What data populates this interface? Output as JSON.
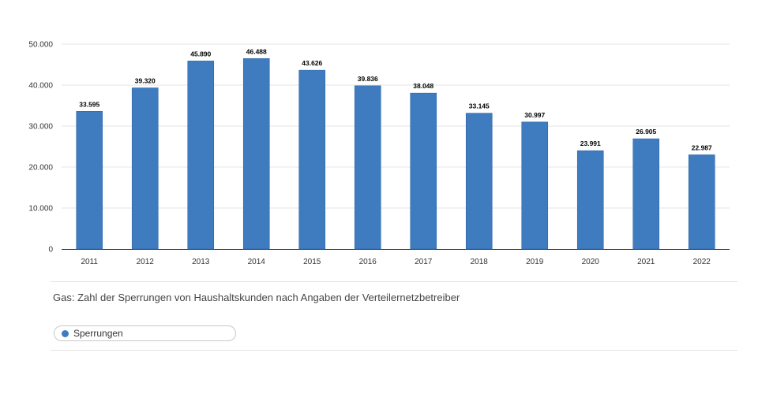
{
  "chart_data": {
    "type": "bar",
    "title": "",
    "xlabel": "",
    "ylabel": "",
    "categories": [
      "2011",
      "2012",
      "2013",
      "2014",
      "2015",
      "2016",
      "2017",
      "2018",
      "2019",
      "2020",
      "2021",
      "2022"
    ],
    "series": [
      {
        "name": "Sperrungen",
        "color": "#3f7bbf",
        "values": [
          33595,
          39320,
          45890,
          46488,
          43626,
          39836,
          38048,
          33145,
          30997,
          23991,
          26905,
          22987
        ],
        "labels": [
          "33.595",
          "39.320",
          "45.890",
          "46.488",
          "43.626",
          "39.836",
          "38.048",
          "33.145",
          "30.997",
          "23.991",
          "26.905",
          "22.987"
        ]
      }
    ],
    "ylim": [
      0,
      50000
    ],
    "yticks": [
      0,
      10000,
      20000,
      30000,
      40000,
      50000
    ],
    "ytick_labels": [
      "0",
      "10.000",
      "20.000",
      "30.000",
      "40.000",
      "50.000"
    ],
    "grid": true,
    "legend": "bottom-left"
  },
  "caption": "Gas: Zahl der Sperrungen von Haushaltskunden nach Angaben der Verteilernetzbetreiber",
  "legend": {
    "label": "Sperrungen",
    "color": "#3f7bbf"
  }
}
